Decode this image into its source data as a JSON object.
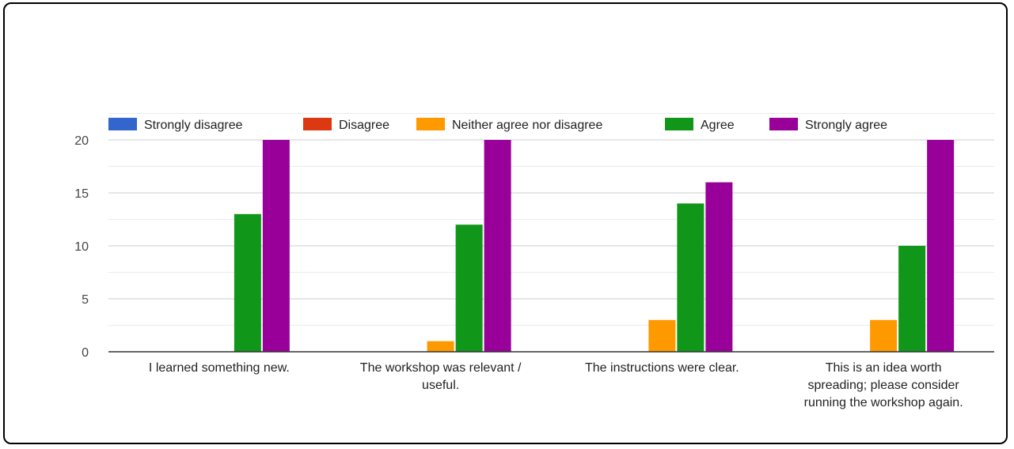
{
  "chart_data": {
    "type": "bar",
    "title": "",
    "xlabel": "",
    "ylabel": "",
    "ylim": [
      0,
      20
    ],
    "yticks": [
      0,
      5,
      10,
      15,
      20
    ],
    "grid": true,
    "legend_position": "top",
    "categories": [
      "I learned something new.",
      "The workshop was relevant / useful.",
      "The instructions were clear.",
      "This is an idea worth spreading; please consider running the workshop again."
    ],
    "series": [
      {
        "name": "Strongly disagree",
        "color": "#3366cc",
        "values": [
          0,
          0,
          0,
          0
        ]
      },
      {
        "name": "Disagree",
        "color": "#dc3912",
        "values": [
          0,
          0,
          0,
          0
        ]
      },
      {
        "name": "Neither agree nor disagree",
        "color": "#ff9900",
        "values": [
          0,
          1,
          3,
          3
        ]
      },
      {
        "name": "Agree",
        "color": "#109618",
        "values": [
          13,
          12,
          14,
          10
        ]
      },
      {
        "name": "Strongly agree",
        "color": "#990099",
        "values": [
          20,
          20,
          16,
          20
        ]
      }
    ]
  }
}
